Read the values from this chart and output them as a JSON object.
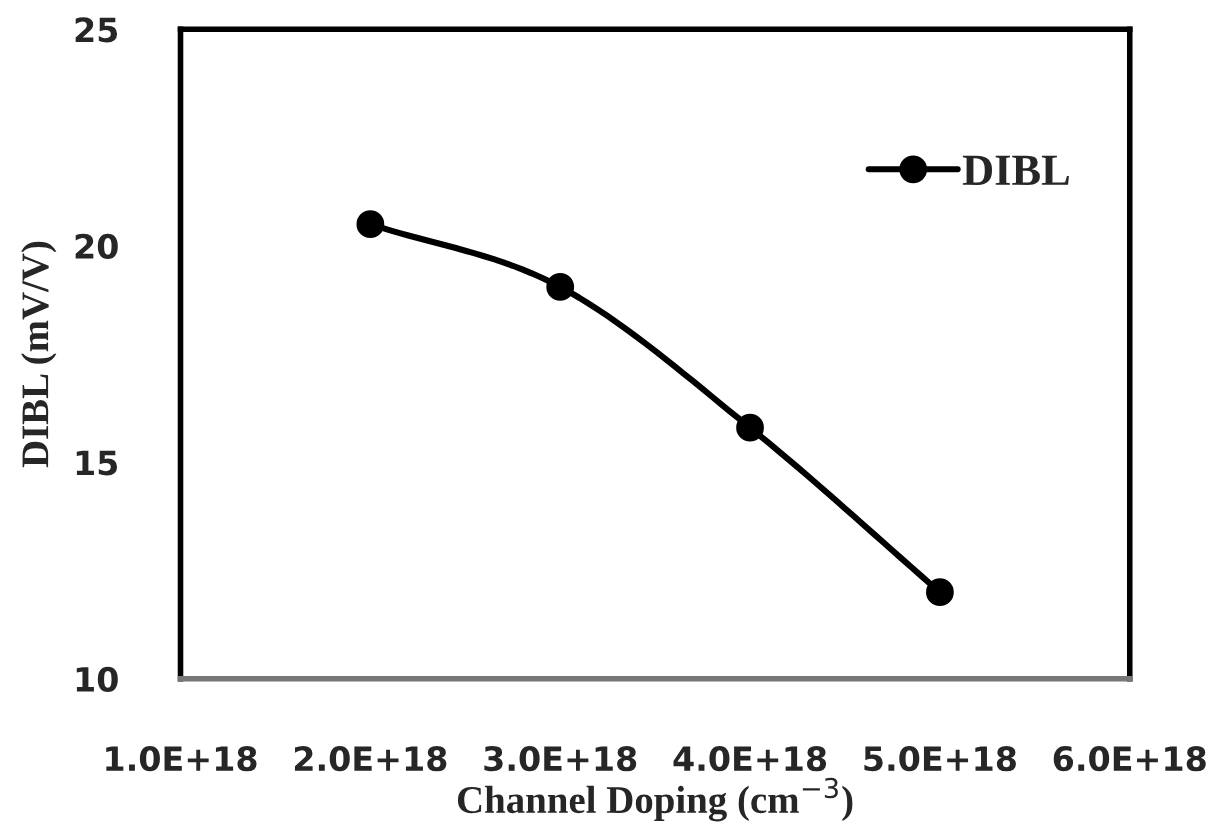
{
  "chart_data": {
    "type": "line",
    "xlabel": "Channel Doping (cm$^{−3}$)",
    "ylabel": "DIBL (mV/V)",
    "x": [
      2e+18,
      3e+18,
      4e+18,
      5e+18
    ],
    "series": [
      {
        "name": "DIBL",
        "color": "#000000",
        "values": [
          20.5,
          19.05,
          15.8,
          12.0
        ]
      }
    ],
    "xlim": [
      1e+18,
      6e+18
    ],
    "xticks": [
      {
        "value": 1e+18,
        "label": "1.0E+18"
      },
      {
        "value": 2e+18,
        "label": "2.0E+18"
      },
      {
        "value": 3e+18,
        "label": "3.0E+18"
      },
      {
        "value": 4e+18,
        "label": "4.0E+18"
      },
      {
        "value": 5e+18,
        "label": "5.0E+18"
      },
      {
        "value": 6e+18,
        "label": "6.0E+18"
      }
    ],
    "ylim": [
      10,
      25
    ],
    "yticks": [
      10,
      15,
      20,
      25
    ],
    "grid": false,
    "legend": "top right",
    "marker": "circle",
    "line_style": "solid"
  }
}
